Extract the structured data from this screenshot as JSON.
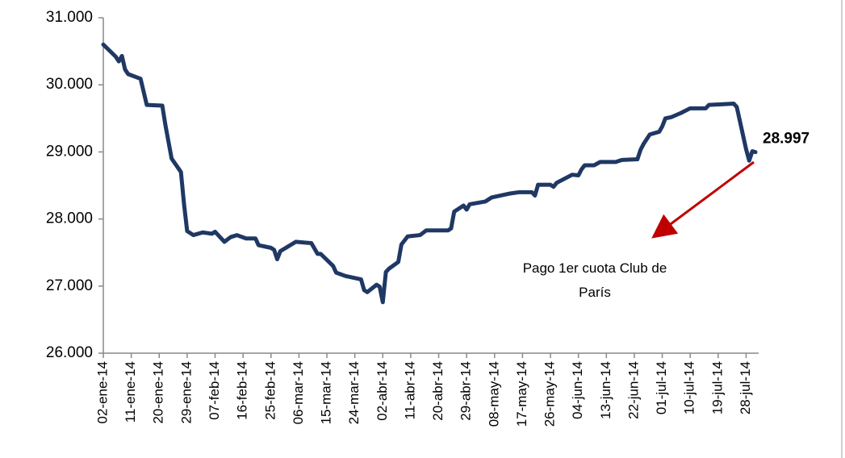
{
  "chart_data": {
    "type": "line",
    "x": [
      "2014-01-02",
      "2014-01-06",
      "2014-01-07",
      "2014-01-08",
      "2014-01-09",
      "2014-01-10",
      "2014-01-14",
      "2014-01-16",
      "2014-01-21",
      "2014-01-22",
      "2014-01-24",
      "2014-01-27",
      "2014-01-28",
      "2014-01-29",
      "2014-01-31",
      "2014-02-03",
      "2014-02-06",
      "2014-02-07",
      "2014-02-10",
      "2014-02-12",
      "2014-02-14",
      "2014-02-17",
      "2014-02-20",
      "2014-02-21",
      "2014-02-25",
      "2014-02-26",
      "2014-02-27",
      "2014-02-28",
      "2014-03-05",
      "2014-03-10",
      "2014-03-12",
      "2014-03-13",
      "2014-03-17",
      "2014-03-18",
      "2014-03-21",
      "2014-03-24",
      "2014-03-26",
      "2014-03-27",
      "2014-03-28",
      "2014-03-31",
      "2014-04-01",
      "2014-04-02",
      "2014-04-03",
      "2014-04-04",
      "2014-04-07",
      "2014-04-08",
      "2014-04-10",
      "2014-04-14",
      "2014-04-16",
      "2014-04-21",
      "2014-04-23",
      "2014-04-24",
      "2014-04-25",
      "2014-04-28",
      "2014-04-29",
      "2014-04-30",
      "2014-05-05",
      "2014-05-07",
      "2014-05-13",
      "2014-05-16",
      "2014-05-20",
      "2014-05-21",
      "2014-05-22",
      "2014-05-26",
      "2014-05-27",
      "2014-05-28",
      "2014-06-02",
      "2014-06-04",
      "2014-06-05",
      "2014-06-06",
      "2014-06-09",
      "2014-06-11",
      "2014-06-16",
      "2014-06-18",
      "2014-06-23",
      "2014-06-24",
      "2014-06-25",
      "2014-06-27",
      "2014-06-30",
      "2014-07-01",
      "2014-07-02",
      "2014-07-04",
      "2014-07-07",
      "2014-07-10",
      "2014-07-15",
      "2014-07-16",
      "2014-07-24",
      "2014-07-25",
      "2014-07-28",
      "2014-07-29",
      "2014-07-30",
      "2014-07-31"
    ],
    "values": [
      30600,
      30420,
      30350,
      30430,
      30230,
      30160,
      30090,
      29700,
      29690,
      29400,
      28900,
      28700,
      28220,
      27820,
      27760,
      27800,
      27780,
      27810,
      27660,
      27730,
      27760,
      27710,
      27710,
      27610,
      27570,
      27540,
      27400,
      27520,
      27660,
      27640,
      27480,
      27480,
      27300,
      27200,
      27150,
      27120,
      27100,
      26940,
      26910,
      27020,
      26990,
      26760,
      27210,
      27260,
      27360,
      27620,
      27740,
      27760,
      27830,
      27830,
      27830,
      27860,
      28110,
      28200,
      28140,
      28220,
      28260,
      28320,
      28380,
      28400,
      28400,
      28350,
      28510,
      28510,
      28480,
      28540,
      28660,
      28650,
      28740,
      28800,
      28800,
      28850,
      28850,
      28880,
      28890,
      29030,
      29120,
      29260,
      29300,
      29380,
      29500,
      29520,
      29580,
      29650,
      29650,
      29700,
      29720,
      29670,
      29040,
      28870,
      29010,
      28997
    ],
    "value_labels": [
      null,
      null,
      null,
      null,
      null,
      null,
      null,
      null,
      null,
      null,
      null,
      null,
      null,
      null,
      null,
      null,
      null,
      null,
      null,
      null,
      null,
      null,
      null,
      null,
      null,
      null,
      null,
      null,
      null,
      null,
      null,
      null,
      null,
      null,
      null,
      null,
      null,
      null,
      null,
      null,
      null,
      null,
      null,
      null,
      null,
      null,
      null,
      null,
      null,
      null,
      null,
      null,
      null,
      null,
      null,
      null,
      null,
      null,
      null,
      null,
      null,
      null,
      null,
      null,
      null,
      null,
      null,
      null,
      null,
      null,
      null,
      null,
      null,
      null,
      null,
      null,
      null,
      null,
      null,
      null,
      null,
      null,
      null,
      null,
      null,
      null,
      null,
      null,
      null,
      null,
      null,
      "28.997"
    ],
    "color": "#1f3864",
    "xlim": [
      "2014-01-02",
      "2014-07-31"
    ],
    "xticks": [
      {
        "value": "2014-01-02",
        "label": "02-ene-14"
      },
      {
        "value": "2014-01-11",
        "label": "11-ene-14"
      },
      {
        "value": "2014-01-20",
        "label": "20-ene-14"
      },
      {
        "value": "2014-01-29",
        "label": "29-ene-14"
      },
      {
        "value": "2014-02-07",
        "label": "07-feb-14"
      },
      {
        "value": "2014-02-16",
        "label": "16-feb-14"
      },
      {
        "value": "2014-02-25",
        "label": "25-feb-14"
      },
      {
        "value": "2014-03-06",
        "label": "06-mar-14"
      },
      {
        "value": "2014-03-15",
        "label": "15-mar-14"
      },
      {
        "value": "2014-03-24",
        "label": "24-mar-14"
      },
      {
        "value": "2014-04-02",
        "label": "02-abr-14"
      },
      {
        "value": "2014-04-11",
        "label": "11-abr-14"
      },
      {
        "value": "2014-04-20",
        "label": "20-abr-14"
      },
      {
        "value": "2014-04-29",
        "label": "29-abr-14"
      },
      {
        "value": "2014-05-08",
        "label": "08-may-14"
      },
      {
        "value": "2014-05-17",
        "label": "17-may-14"
      },
      {
        "value": "2014-05-26",
        "label": "26-may-14"
      },
      {
        "value": "2014-06-04",
        "label": "04-jun-14"
      },
      {
        "value": "2014-06-13",
        "label": "13-jun-14"
      },
      {
        "value": "2014-06-22",
        "label": "22-jun-14"
      },
      {
        "value": "2014-07-01",
        "label": "01-jul-14"
      },
      {
        "value": "2014-07-10",
        "label": "10-jul-14"
      },
      {
        "value": "2014-07-19",
        "label": "19-jul-14"
      },
      {
        "value": "2014-07-28",
        "label": "28-jul-14"
      }
    ],
    "ylim": [
      26000,
      31000
    ],
    "yticks": [
      {
        "value": 26000,
        "label": "26.000"
      },
      {
        "value": 27000,
        "label": "27.000"
      },
      {
        "value": 28000,
        "label": "28.000"
      },
      {
        "value": 29000,
        "label": "29.000"
      },
      {
        "value": 30000,
        "label": "30.000"
      },
      {
        "value": 31000,
        "label": "31.000"
      }
    ],
    "annotation": "Pago 1er cuota Club de París"
  }
}
